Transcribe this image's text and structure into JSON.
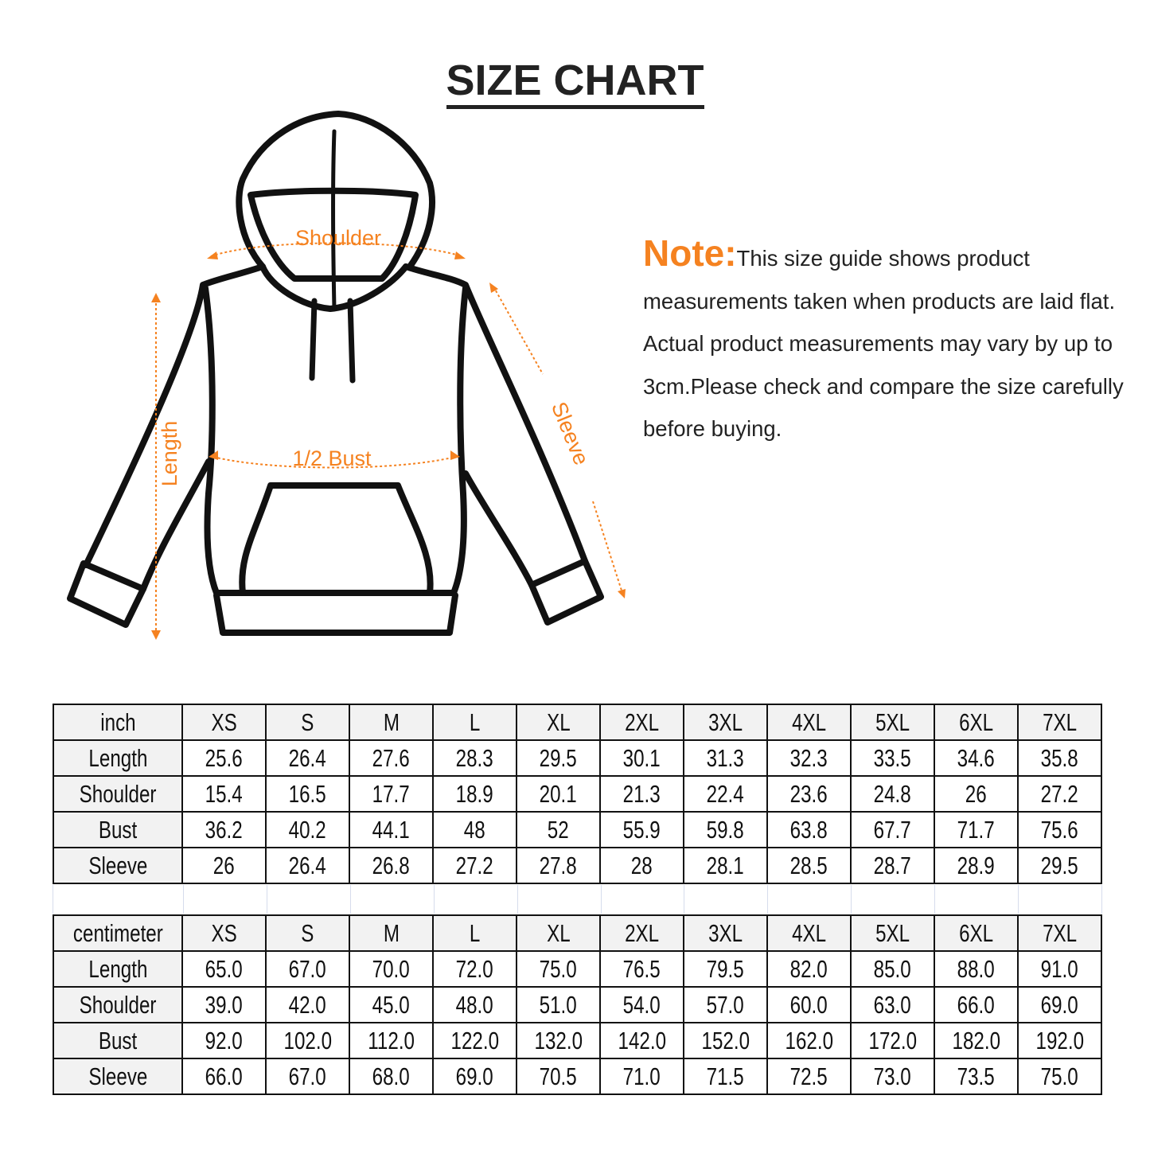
{
  "title": "SIZE CHART",
  "accent_color": "#f58220",
  "diagram": {
    "labels": {
      "shoulder": "Shoulder",
      "length": "Length",
      "bust": "1/2 Bust",
      "sleeve": "Sleeve"
    }
  },
  "note": {
    "lead": "Note:",
    "text": "This size guide shows product measurements taken when products are laid flat. Actual product measurements may vary by up to 3cm.Please check and compare the size carefully before buying."
  },
  "tables": [
    {
      "unit": "inch",
      "sizes": [
        "XS",
        "S",
        "M",
        "L",
        "XL",
        "2XL",
        "3XL",
        "4XL",
        "5XL",
        "6XL",
        "7XL"
      ],
      "rows": [
        {
          "label": "Length",
          "values": [
            "25.6",
            "26.4",
            "27.6",
            "28.3",
            "29.5",
            "30.1",
            "31.3",
            "32.3",
            "33.5",
            "34.6",
            "35.8"
          ]
        },
        {
          "label": "Shoulder",
          "values": [
            "15.4",
            "16.5",
            "17.7",
            "18.9",
            "20.1",
            "21.3",
            "22.4",
            "23.6",
            "24.8",
            "26",
            "27.2"
          ]
        },
        {
          "label": "Bust",
          "values": [
            "36.2",
            "40.2",
            "44.1",
            "48",
            "52",
            "55.9",
            "59.8",
            "63.8",
            "67.7",
            "71.7",
            "75.6"
          ]
        },
        {
          "label": "Sleeve",
          "values": [
            "26",
            "26.4",
            "26.8",
            "27.2",
            "27.8",
            "28",
            "28.1",
            "28.5",
            "28.7",
            "28.9",
            "29.5"
          ]
        }
      ]
    },
    {
      "unit": "centimeter",
      "sizes": [
        "XS",
        "S",
        "M",
        "L",
        "XL",
        "2XL",
        "3XL",
        "4XL",
        "5XL",
        "6XL",
        "7XL"
      ],
      "rows": [
        {
          "label": "Length",
          "values": [
            "65.0",
            "67.0",
            "70.0",
            "72.0",
            "75.0",
            "76.5",
            "79.5",
            "82.0",
            "85.0",
            "88.0",
            "91.0"
          ]
        },
        {
          "label": "Shoulder",
          "values": [
            "39.0",
            "42.0",
            "45.0",
            "48.0",
            "51.0",
            "54.0",
            "57.0",
            "60.0",
            "63.0",
            "66.0",
            "69.0"
          ]
        },
        {
          "label": "Bust",
          "values": [
            "92.0",
            "102.0",
            "112.0",
            "122.0",
            "132.0",
            "142.0",
            "152.0",
            "162.0",
            "172.0",
            "182.0",
            "192.0"
          ]
        },
        {
          "label": "Sleeve",
          "values": [
            "66.0",
            "67.0",
            "68.0",
            "69.0",
            "70.5",
            "71.0",
            "71.5",
            "72.5",
            "73.0",
            "73.5",
            "75.0"
          ]
        }
      ]
    }
  ]
}
